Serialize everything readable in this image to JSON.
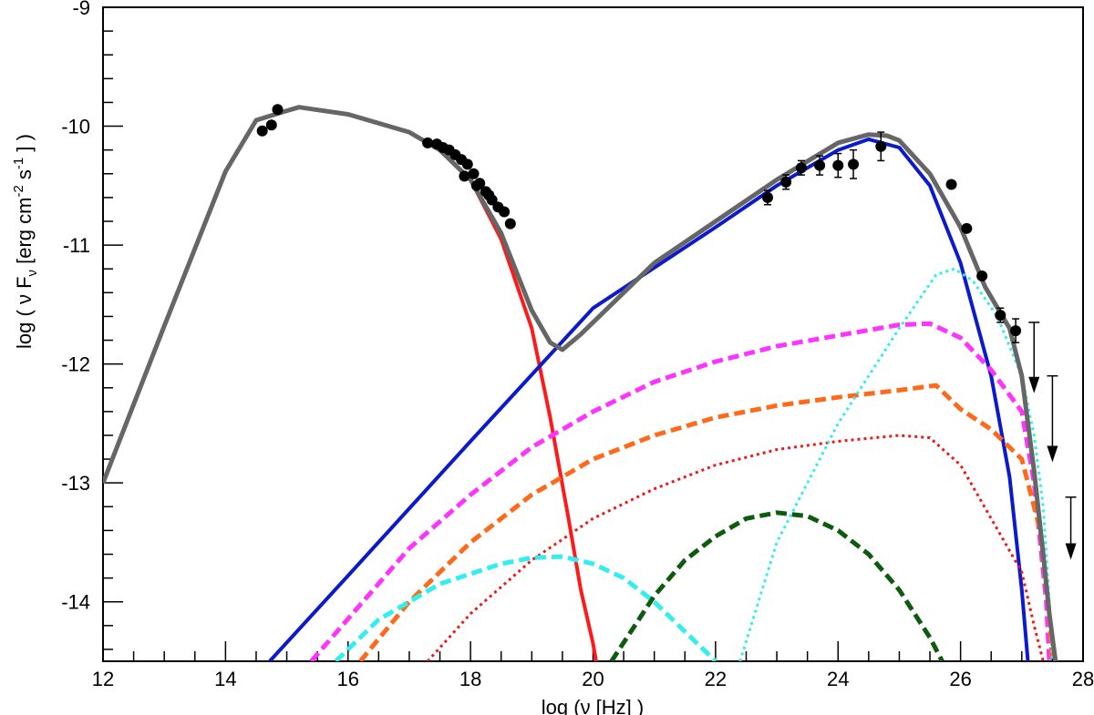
{
  "chart_data": {
    "type": "line",
    "title": "",
    "xlabel": "log (ν [Hz] )",
    "ylabel": "log ( ν Fν [erg cm⁻² s⁻¹ ] )",
    "ylabel_parts": {
      "pre": "log ( ν F",
      "sub1": "ν",
      "mid1": " [erg cm",
      "sup1": "-2",
      "mid2": " s",
      "sup2": "-1",
      "post": " ] )"
    },
    "xlim": [
      12,
      28
    ],
    "ylim": [
      -14.5,
      -9
    ],
    "grid": false,
    "legend": "none",
    "x_ticks": [
      {
        "value": 12,
        "label": "12"
      },
      {
        "value": 14,
        "label": "14"
      },
      {
        "value": 16,
        "label": "16"
      },
      {
        "value": 18,
        "label": "18"
      },
      {
        "value": 20,
        "label": "20"
      },
      {
        "value": 22,
        "label": "22"
      },
      {
        "value": 24,
        "label": "24"
      },
      {
        "value": 26,
        "label": "26"
      },
      {
        "value": 28,
        "label": "28"
      }
    ],
    "y_ticks": [
      {
        "value": -9,
        "label": "-9"
      },
      {
        "value": -10,
        "label": "-10"
      },
      {
        "value": -11,
        "label": "-11"
      },
      {
        "value": -12,
        "label": "-12"
      },
      {
        "value": -13,
        "label": "-13"
      },
      {
        "value": -14,
        "label": "-14"
      }
    ],
    "series": [
      {
        "color": "#ff1a1a",
        "style": "solid",
        "x": [
          12,
          13,
          14,
          14.5,
          15,
          15.2,
          16,
          17,
          17.5,
          18,
          18.5,
          19,
          19.3,
          19.6,
          19.8,
          20.0,
          20.05
        ],
        "y": [
          -13.0,
          -11.68,
          -10.38,
          -9.95,
          -9.87,
          -9.84,
          -9.9,
          -10.05,
          -10.2,
          -10.45,
          -10.95,
          -11.7,
          -12.45,
          -13.3,
          -13.9,
          -14.35,
          -14.5
        ]
      },
      {
        "color": "#0a1acc",
        "style": "solid",
        "x": [
          14.72,
          16,
          18,
          20,
          22,
          23,
          24,
          24.5,
          25,
          25.5,
          26,
          26.5,
          26.8,
          27.0,
          27.1
        ],
        "y": [
          -14.5,
          -13.78,
          -12.65,
          -11.53,
          -10.85,
          -10.5,
          -10.2,
          -10.11,
          -10.18,
          -10.5,
          -11.15,
          -12.1,
          -12.95,
          -13.9,
          -14.5
        ]
      },
      {
        "color": "#ff33ff",
        "style": "dash",
        "x": [
          15.4,
          17,
          18,
          19,
          20,
          21,
          22,
          23,
          24,
          25,
          25.5,
          26,
          26.5,
          27.0,
          27.2,
          27.4,
          27.45
        ],
        "y": [
          -14.5,
          -13.55,
          -13.1,
          -12.7,
          -12.4,
          -12.15,
          -11.98,
          -11.85,
          -11.76,
          -11.67,
          -11.66,
          -11.78,
          -12.05,
          -12.4,
          -13.0,
          -14.0,
          -14.5
        ]
      },
      {
        "color": "#ff6a1a",
        "style": "dash",
        "x": [
          16.2,
          17,
          18,
          19,
          20,
          21,
          22,
          23,
          24,
          25,
          25.6,
          26,
          26.5,
          27.0,
          27.3,
          27.45,
          27.5
        ],
        "y": [
          -14.5,
          -14.0,
          -13.5,
          -13.1,
          -12.8,
          -12.6,
          -12.45,
          -12.35,
          -12.28,
          -12.22,
          -12.18,
          -12.38,
          -12.55,
          -12.8,
          -13.4,
          -14.1,
          -14.5
        ]
      },
      {
        "color": "#ee1a1a",
        "style": "dot",
        "x": [
          17.3,
          18,
          19,
          20,
          21,
          22,
          23,
          24,
          25,
          25.5,
          26,
          26.5,
          27.0,
          27.2,
          27.35
        ],
        "y": [
          -14.5,
          -14.1,
          -13.65,
          -13.3,
          -13.05,
          -12.85,
          -12.72,
          -12.65,
          -12.6,
          -12.62,
          -12.85,
          -13.3,
          -13.75,
          -14.2,
          -14.5
        ]
      },
      {
        "color": "#33eeee",
        "style": "dash",
        "x": [
          15.8,
          16.5,
          17.5,
          18.5,
          19.0,
          19.5,
          20.0,
          20.5,
          21.0,
          21.5,
          22.0
        ],
        "y": [
          -14.5,
          -14.15,
          -13.85,
          -13.68,
          -13.63,
          -13.62,
          -13.68,
          -13.8,
          -14.0,
          -14.25,
          -14.5
        ]
      },
      {
        "color": "#33eeee",
        "style": "dot",
        "x": [
          22.4,
          23,
          24,
          25,
          25.6,
          25.9,
          26.2,
          26.6,
          27.0,
          27.2,
          27.35,
          27.45,
          27.5
        ],
        "y": [
          -14.5,
          -13.5,
          -12.5,
          -11.7,
          -11.25,
          -11.2,
          -11.3,
          -11.6,
          -12.1,
          -12.6,
          -13.2,
          -14.0,
          -14.5
        ]
      },
      {
        "color": "#0e5a0e",
        "style": "dash",
        "x": [
          20.3,
          21,
          21.5,
          22,
          22.5,
          23,
          23.5,
          24,
          24.5,
          25,
          25.5,
          25.7
        ],
        "y": [
          -14.5,
          -13.95,
          -13.65,
          -13.45,
          -13.3,
          -13.25,
          -13.28,
          -13.4,
          -13.6,
          -13.9,
          -14.3,
          -14.5
        ]
      },
      {
        "color": "#666666",
        "style": "solid",
        "x": [
          12,
          13,
          14,
          14.5,
          15,
          15.2,
          16,
          17,
          17.5,
          18,
          18.5,
          19,
          19.3,
          19.5,
          19.8,
          20.2,
          21,
          22,
          23,
          24,
          24.5,
          24.8,
          25,
          25.5,
          26,
          26.4,
          26.8,
          27.0,
          27.2,
          27.35,
          27.45,
          27.55
        ],
        "y": [
          -13.0,
          -11.68,
          -10.38,
          -9.95,
          -9.87,
          -9.84,
          -9.9,
          -10.05,
          -10.2,
          -10.45,
          -10.9,
          -11.55,
          -11.82,
          -11.88,
          -11.75,
          -11.55,
          -11.15,
          -10.8,
          -10.45,
          -10.14,
          -10.07,
          -10.08,
          -10.12,
          -10.4,
          -10.85,
          -11.35,
          -11.7,
          -12.1,
          -12.9,
          -13.6,
          -14.1,
          -14.5
        ]
      }
    ],
    "observed_points": {
      "x": [
        14.6,
        14.75,
        14.85,
        17.3,
        17.45,
        17.55,
        17.65,
        17.75,
        17.85,
        17.95,
        18.05,
        18.15,
        18.25,
        18.35,
        18.45,
        18.55,
        18.65,
        17.9,
        18.1,
        18.3,
        22.85,
        23.15,
        23.4,
        23.7,
        24.0,
        24.25,
        24.7,
        25.85,
        26.1,
        26.35,
        26.65,
        26.9
      ],
      "y": [
        -10.04,
        -9.99,
        -9.86,
        -10.14,
        -10.15,
        -10.18,
        -10.2,
        -10.24,
        -10.28,
        -10.32,
        -10.4,
        -10.48,
        -10.55,
        -10.62,
        -10.68,
        -10.72,
        -10.82,
        -10.42,
        -10.5,
        -10.58,
        -10.6,
        -10.47,
        -10.35,
        -10.33,
        -10.33,
        -10.32,
        -10.17,
        -10.49,
        -10.86,
        -11.26,
        -11.59,
        -11.72
      ],
      "err": [
        0,
        0,
        0,
        0,
        0,
        0,
        0,
        0,
        0,
        0,
        0,
        0,
        0,
        0,
        0,
        0,
        0,
        0,
        0,
        0,
        0.06,
        0.06,
        0.06,
        0.08,
        0.1,
        0.12,
        0.12,
        0,
        0,
        0,
        0.06,
        0.1
      ]
    },
    "upper_limits": {
      "x": [
        27.2,
        27.5,
        27.8
      ],
      "y": [
        -11.65,
        -12.1,
        -13.12
      ],
      "to": [
        -12.2,
        -12.78,
        -13.6
      ]
    }
  }
}
